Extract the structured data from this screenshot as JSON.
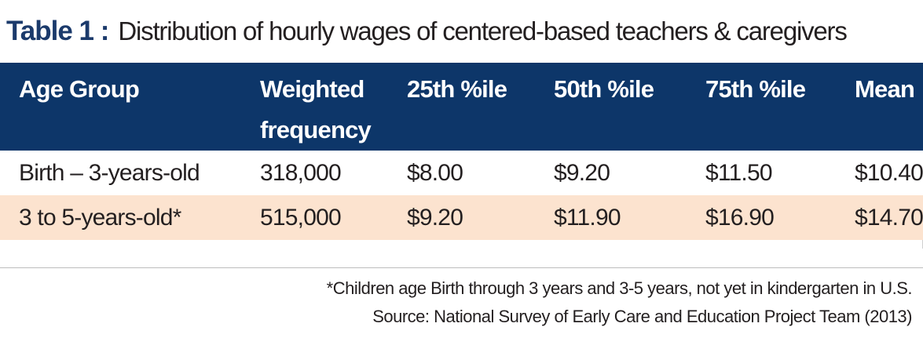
{
  "title": {
    "label": "Table 1 :",
    "text": "Distribution of hourly wages of centered-based teachers & caregivers"
  },
  "table": {
    "headers": [
      "Age Group",
      "Weighted frequency",
      "25th %ile",
      "50th %ile",
      "75th %ile",
      "Mean"
    ],
    "rows": [
      [
        "Birth – 3-years-old",
        "318,000",
        "$8.00",
        "$9.20",
        "$11.50",
        "$10.40"
      ],
      [
        "3 to 5-years-old*",
        "515,000",
        "$9.20",
        "$11.90",
        "$16.90",
        "$14.70"
      ]
    ],
    "colors": {
      "header_bg": "#0d3669",
      "header_text": "#ffffff",
      "alt_row_bg": "#fce3cf",
      "title_label": "#1b3a6b"
    }
  },
  "notes": {
    "footnote": "*Children age Birth through 3 years and 3-5 years, not yet in kindergarten in U.S.",
    "source": "Source: National Survey of Early Care and Education Project Team (2013)"
  }
}
